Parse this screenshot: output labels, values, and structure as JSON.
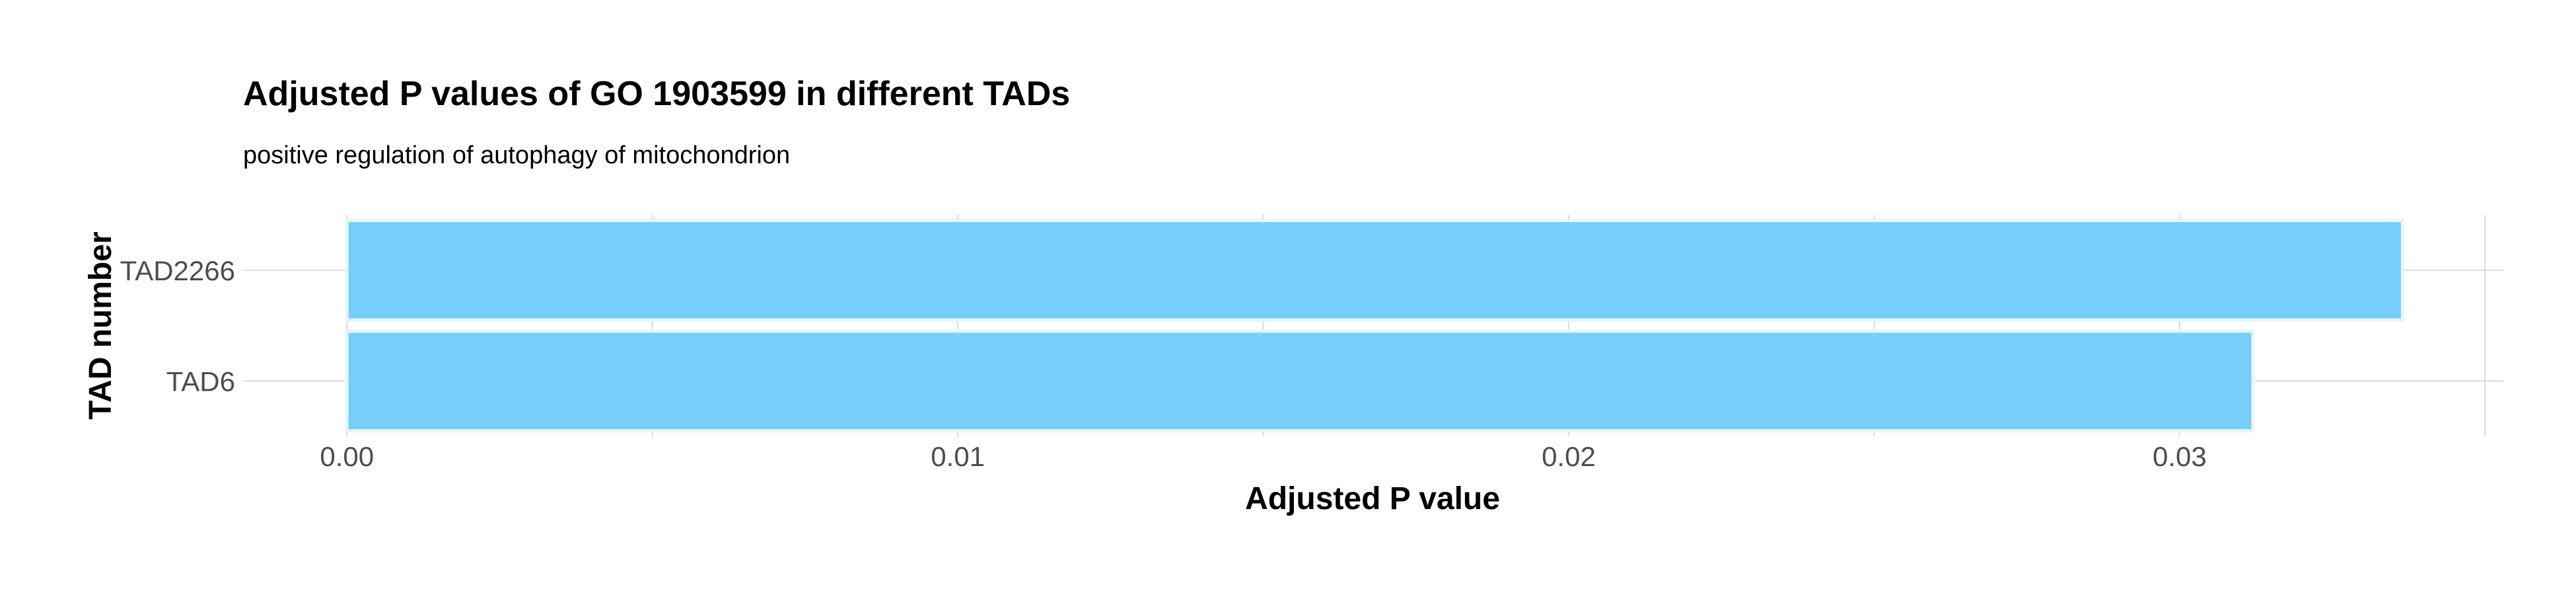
{
  "chart_data": {
    "type": "bar",
    "orientation": "horizontal",
    "title": "Adjusted P values of GO 1903599 in different TADs",
    "subtitle": "positive regulation of autophagy of mitochondrion",
    "xlabel": "Adjusted P value",
    "ylabel": "TAD number",
    "categories": [
      "TAD2266",
      "TAD6"
    ],
    "values": [
      0.03365,
      0.0312
    ],
    "xlim": [
      -0.0017,
      0.0353
    ],
    "x_ticks": [
      0,
      0.01,
      0.02,
      0.03
    ],
    "x_tick_labels": [
      "0.00",
      "0.01",
      "0.02",
      "0.03"
    ],
    "grid": true,
    "bar_color": "#75CFFA",
    "bar_outline_color": "#E8F4FB",
    "grid_color": "#D9D9D9",
    "legend": "none"
  }
}
